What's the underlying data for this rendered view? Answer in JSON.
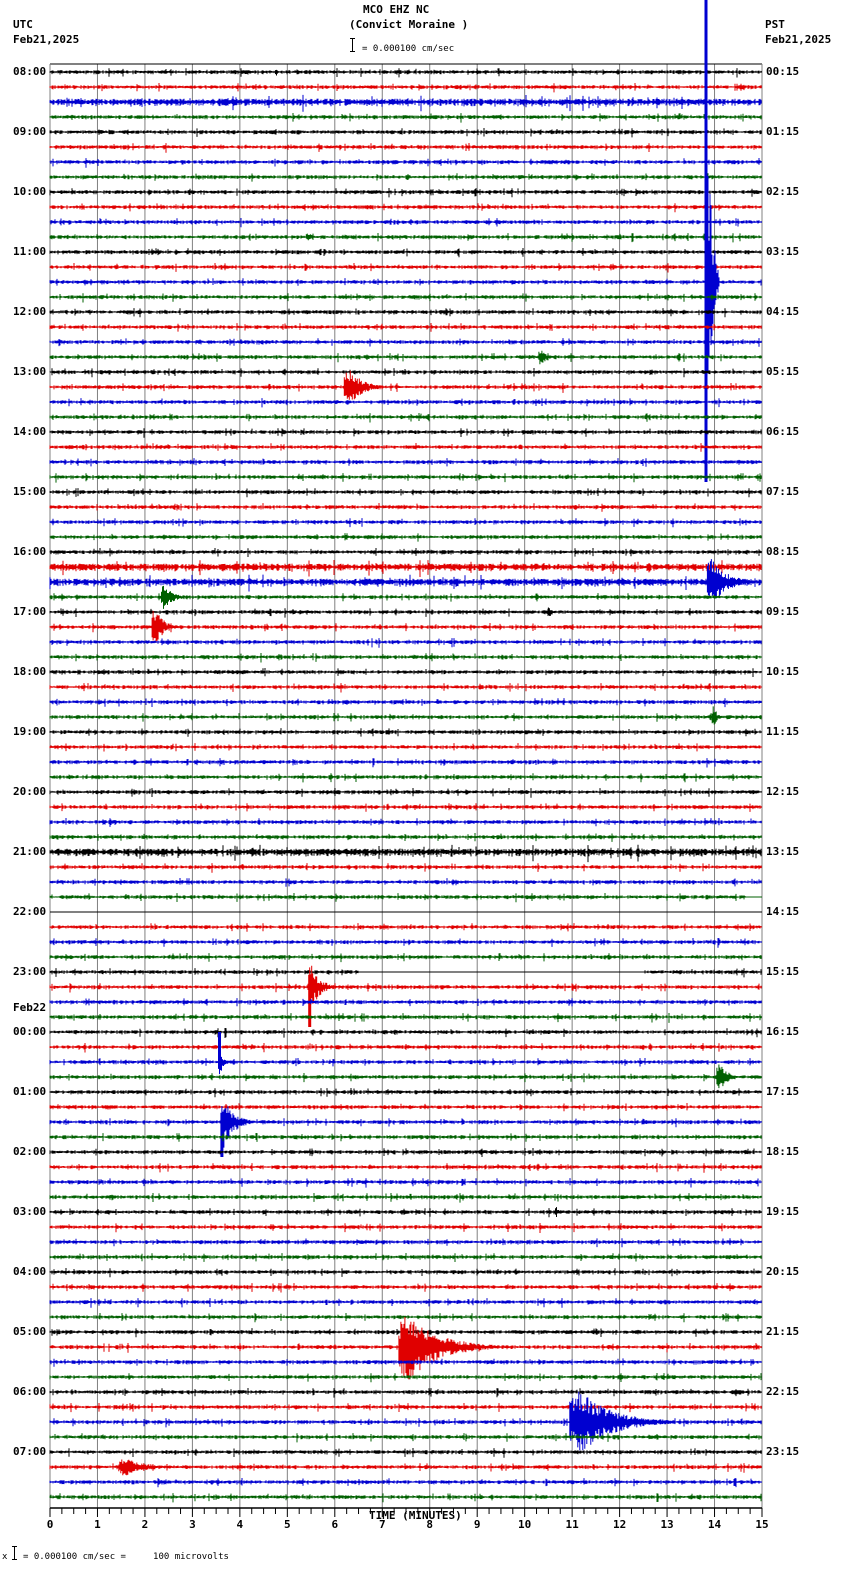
{
  "header": {
    "station": "MCO EHZ NC",
    "site": "(Convict Moraine )",
    "scale_text": "= 0.000100 cm/sec",
    "left_tz": "UTC",
    "left_date": "Feb21,2025",
    "right_tz": "PST",
    "right_date": "Feb21,2025"
  },
  "footer": {
    "prefix": "x",
    "scale_text": "= 0.000100 cm/sec =     100 microvolts"
  },
  "date_change_label": "Feb22",
  "colors": {
    "trace_cycle": [
      "#000000",
      "#e00000",
      "#0000d0",
      "#006000"
    ],
    "grid": "#808080",
    "frame": "#000000"
  },
  "chart_data": {
    "type": "line",
    "title": "MCO EHZ NC (Convict Moraine )",
    "xlabel": "TIME (MINUTES)",
    "ylabel": "",
    "xlim": [
      0,
      15
    ],
    "x_ticks": [
      "0",
      "1",
      "2",
      "3",
      "4",
      "5",
      "6",
      "7",
      "8",
      "9",
      "10",
      "11",
      "12",
      "13",
      "14",
      "15"
    ],
    "rows_per_hour": 4,
    "minutes_per_row": 15,
    "num_rows": 96,
    "grid": true,
    "left_labels": [
      {
        "row": 0,
        "text": "08:00"
      },
      {
        "row": 4,
        "text": "09:00"
      },
      {
        "row": 8,
        "text": "10:00"
      },
      {
        "row": 12,
        "text": "11:00"
      },
      {
        "row": 16,
        "text": "12:00"
      },
      {
        "row": 20,
        "text": "13:00"
      },
      {
        "row": 24,
        "text": "14:00"
      },
      {
        "row": 28,
        "text": "15:00"
      },
      {
        "row": 32,
        "text": "16:00"
      },
      {
        "row": 36,
        "text": "17:00"
      },
      {
        "row": 40,
        "text": "18:00"
      },
      {
        "row": 44,
        "text": "19:00"
      },
      {
        "row": 48,
        "text": "20:00"
      },
      {
        "row": 52,
        "text": "21:00"
      },
      {
        "row": 56,
        "text": "22:00"
      },
      {
        "row": 60,
        "text": "23:00"
      },
      {
        "row": 64,
        "text": "00:00"
      },
      {
        "row": 68,
        "text": "01:00"
      },
      {
        "row": 72,
        "text": "02:00"
      },
      {
        "row": 76,
        "text": "03:00"
      },
      {
        "row": 80,
        "text": "04:00"
      },
      {
        "row": 84,
        "text": "05:00"
      },
      {
        "row": 88,
        "text": "06:00"
      },
      {
        "row": 92,
        "text": "07:00"
      }
    ],
    "right_labels": [
      {
        "row": 0,
        "text": "00:15"
      },
      {
        "row": 4,
        "text": "01:15"
      },
      {
        "row": 8,
        "text": "02:15"
      },
      {
        "row": 12,
        "text": "03:15"
      },
      {
        "row": 16,
        "text": "04:15"
      },
      {
        "row": 20,
        "text": "05:15"
      },
      {
        "row": 24,
        "text": "06:15"
      },
      {
        "row": 28,
        "text": "07:15"
      },
      {
        "row": 32,
        "text": "08:15"
      },
      {
        "row": 36,
        "text": "09:15"
      },
      {
        "row": 40,
        "text": "10:15"
      },
      {
        "row": 44,
        "text": "11:15"
      },
      {
        "row": 48,
        "text": "12:15"
      },
      {
        "row": 52,
        "text": "13:15"
      },
      {
        "row": 56,
        "text": "14:15"
      },
      {
        "row": 60,
        "text": "15:15"
      },
      {
        "row": 64,
        "text": "16:15"
      },
      {
        "row": 68,
        "text": "17:15"
      },
      {
        "row": 72,
        "text": "18:15"
      },
      {
        "row": 76,
        "text": "19:15"
      },
      {
        "row": 80,
        "text": "20:15"
      },
      {
        "row": 84,
        "text": "21:15"
      },
      {
        "row": 88,
        "text": "22:15"
      },
      {
        "row": 92,
        "text": "23:15"
      }
    ],
    "events": [
      {
        "row": 0,
        "minute": 4.75,
        "amp": 6,
        "dur": 0.1
      },
      {
        "row": 1,
        "minute": 11.9,
        "amp": 6,
        "dur": 0.1
      },
      {
        "row": 9,
        "minute": 7.9,
        "amp": 3,
        "dur": 0.4
      },
      {
        "row": 11,
        "minute": 5.4,
        "amp": 6,
        "dur": 0.3
      },
      {
        "row": 19,
        "minute": 10.3,
        "amp": 10,
        "dur": 0.4
      },
      {
        "row": 21,
        "minute": 6.2,
        "amp": 22,
        "dur": 0.9
      },
      {
        "row": 14,
        "minute": 13.8,
        "amp": 250,
        "dur": 0.3,
        "up": 310,
        "down": 200
      },
      {
        "row": 34,
        "minute": 13.85,
        "amp": 28,
        "dur": 1.0
      },
      {
        "row": 35,
        "minute": 2.35,
        "amp": 14,
        "dur": 0.6
      },
      {
        "row": 37,
        "minute": 2.15,
        "amp": 22,
        "dur": 0.6
      },
      {
        "row": 36,
        "minute": 10.5,
        "amp": 8,
        "dur": 0.15
      },
      {
        "row": 43,
        "minute": 13.95,
        "amp": 14,
        "dur": 0.25
      },
      {
        "row": 61,
        "minute": 5.45,
        "amp": 26,
        "dur": 0.6,
        "down": 40
      },
      {
        "row": 67,
        "minute": 14.05,
        "amp": 18,
        "dur": 0.5
      },
      {
        "row": 66,
        "minute": 3.55,
        "amp": 20,
        "dur": 0.2,
        "up": 30
      },
      {
        "row": 70,
        "minute": 3.6,
        "amp": 30,
        "dur": 0.7,
        "down": 35
      },
      {
        "row": 72,
        "minute": 13.1,
        "amp": 5,
        "dur": 0.1
      },
      {
        "row": 76,
        "minute": 10.65,
        "amp": 7,
        "dur": 0.15
      },
      {
        "row": 85,
        "minute": 7.35,
        "amp": 38,
        "dur": 2.1
      },
      {
        "row": 90,
        "minute": 10.95,
        "amp": 36,
        "dur": 2.2
      },
      {
        "row": 93,
        "minute": 1.45,
        "amp": 10,
        "dur": 1.5
      }
    ],
    "gaps": [
      {
        "row": 55,
        "from": 14.65,
        "to": 15
      },
      {
        "row": 56,
        "from": 0,
        "to": 15,
        "flat": true
      },
      {
        "row": 60,
        "from": 6.5,
        "to": 12.5,
        "flat": true
      }
    ],
    "noisy_rows": [
      2,
      33,
      34,
      52
    ]
  }
}
